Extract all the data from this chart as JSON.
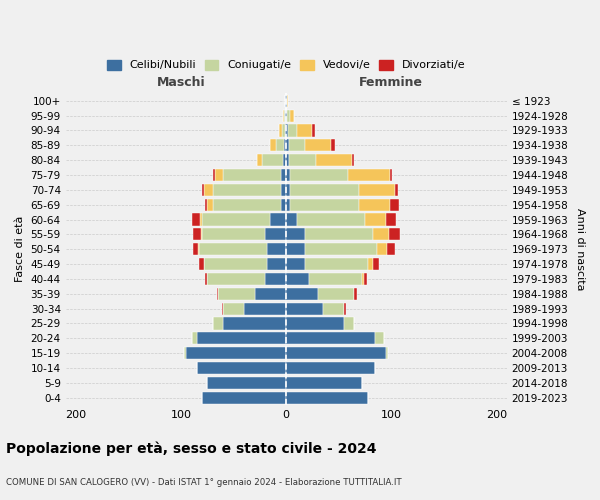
{
  "age_groups": [
    "0-4",
    "5-9",
    "10-14",
    "15-19",
    "20-24",
    "25-29",
    "30-34",
    "35-39",
    "40-44",
    "45-49",
    "50-54",
    "55-59",
    "60-64",
    "65-69",
    "70-74",
    "75-79",
    "80-84",
    "85-89",
    "90-94",
    "95-99",
    "100+"
  ],
  "birth_years": [
    "2019-2023",
    "2014-2018",
    "2009-2013",
    "2004-2008",
    "1999-2003",
    "1994-1998",
    "1989-1993",
    "1984-1988",
    "1979-1983",
    "1974-1978",
    "1969-1973",
    "1964-1968",
    "1959-1963",
    "1954-1958",
    "1949-1953",
    "1944-1948",
    "1939-1943",
    "1934-1938",
    "1929-1933",
    "1924-1928",
    "≤ 1923"
  ],
  "colors": {
    "celibi": "#3d6fa0",
    "coniugati": "#c5d5a0",
    "vedovi": "#f5c55a",
    "divorziati": "#cc2222"
  },
  "males": {
    "celibi": [
      80,
      75,
      85,
      95,
      85,
      60,
      40,
      30,
      20,
      18,
      18,
      20,
      15,
      5,
      5,
      5,
      3,
      2,
      1,
      1,
      1
    ],
    "coniugati": [
      0,
      0,
      0,
      2,
      5,
      10,
      20,
      35,
      55,
      60,
      65,
      60,
      65,
      65,
      65,
      55,
      20,
      8,
      3,
      1,
      0
    ],
    "vedovi": [
      0,
      0,
      0,
      0,
      0,
      0,
      0,
      0,
      0,
      0,
      1,
      1,
      2,
      5,
      8,
      8,
      5,
      5,
      3,
      1,
      0
    ],
    "divorziati": [
      0,
      0,
      0,
      0,
      0,
      0,
      1,
      1,
      2,
      5,
      5,
      8,
      8,
      2,
      2,
      2,
      0,
      0,
      0,
      0,
      0
    ]
  },
  "females": {
    "celibi": [
      78,
      72,
      85,
      95,
      85,
      55,
      35,
      30,
      22,
      18,
      18,
      18,
      10,
      4,
      4,
      4,
      3,
      3,
      2,
      1,
      1
    ],
    "coniugati": [
      0,
      0,
      0,
      2,
      8,
      10,
      20,
      35,
      50,
      60,
      68,
      65,
      65,
      65,
      65,
      55,
      25,
      15,
      8,
      3,
      0
    ],
    "vedovi": [
      0,
      0,
      0,
      0,
      0,
      0,
      0,
      0,
      2,
      5,
      10,
      15,
      20,
      30,
      35,
      40,
      35,
      25,
      15,
      3,
      1
    ],
    "divorziati": [
      0,
      0,
      0,
      0,
      0,
      0,
      2,
      2,
      3,
      5,
      8,
      10,
      10,
      8,
      2,
      2,
      2,
      3,
      2,
      0,
      0
    ]
  },
  "title": "Popolazione per età, sesso e stato civile - 2024",
  "subtitle": "COMUNE DI SAN CALOGERO (VV) - Dati ISTAT 1° gennaio 2024 - Elaborazione TUTTITALIA.IT",
  "xlabel_maschi": "Maschi",
  "xlabel_femmine": "Femmine",
  "ylabel_left": "Fasce di età",
  "ylabel_right": "Anni di nascita",
  "xlim": [
    -210,
    210
  ],
  "xticks": [
    -200,
    -100,
    0,
    100,
    200
  ],
  "xticklabels": [
    "200",
    "100",
    "0",
    "100",
    "200"
  ],
  "background_color": "#f0f0f0",
  "legend_labels": [
    "Celibi/Nubili",
    "Coniugati/e",
    "Vedovi/e",
    "Divorziati/e"
  ],
  "bar_height": 0.82
}
